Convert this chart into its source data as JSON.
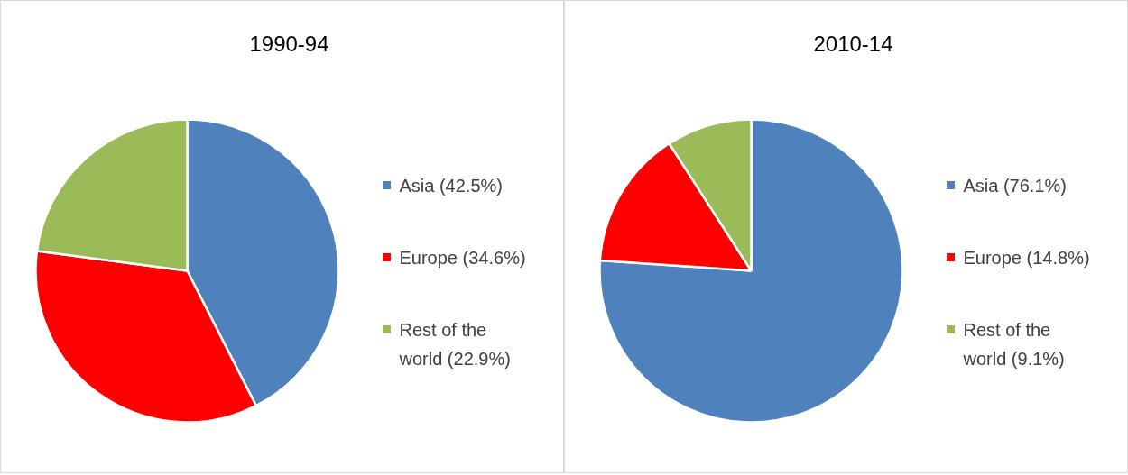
{
  "chart_data": [
    {
      "type": "pie",
      "title": "1990-94",
      "categories": [
        "Asia (42.5%)",
        "Europe (34.6%)",
        "Rest of the world (22.9%)"
      ],
      "values": [
        42.5,
        34.6,
        22.9
      ],
      "colors": [
        "#4f81bd",
        "#ff0000",
        "#9bbb59"
      ],
      "legend": "right"
    },
    {
      "type": "pie",
      "title": "2010-14",
      "categories": [
        "Asia (76.1%)",
        "Europe (14.8%)",
        "Rest of the world (9.1%)"
      ],
      "values": [
        76.1,
        14.8,
        9.1
      ],
      "colors": [
        "#4f81bd",
        "#ff0000",
        "#9bbb59"
      ],
      "legend": "right"
    }
  ]
}
